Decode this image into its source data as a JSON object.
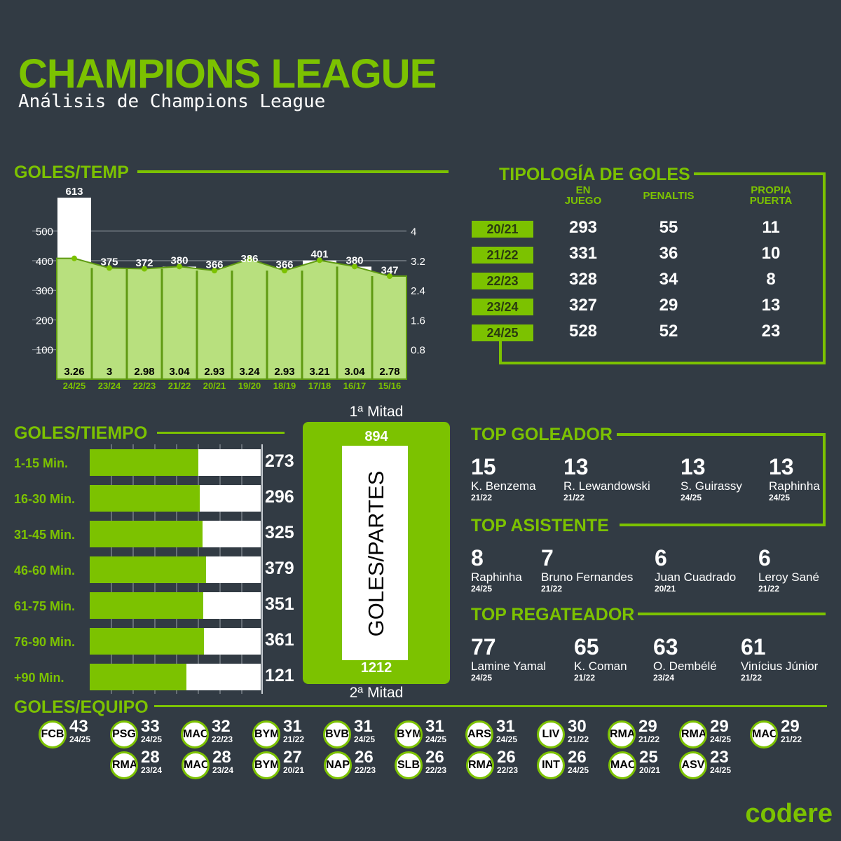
{
  "header": {
    "title": "CHAMPIONS LEAGUE",
    "subtitle": "Análisis de Champions League"
  },
  "sections": {
    "goles_temp": "GOLES/TEMP",
    "tipologia": "TIPOLOGÍA DE GOLES",
    "goles_tiempo": "GOLES/TIEMPO",
    "goles_partes": "GOLES/PARTES",
    "top_goleador": "TOP GOLEADOR",
    "top_asistente": "TOP ASISTENTE",
    "top_regateador": "TOP REGATEADOR",
    "goles_equipo": "GOLES/EQUIPO"
  },
  "chart_data": [
    {
      "type": "bar",
      "categories": [
        "24/25",
        "23/24",
        "22/23",
        "21/22",
        "20/21",
        "19/20",
        "18/19",
        "17/18",
        "16/17",
        "15/16"
      ],
      "series": [
        {
          "values": [
            613,
            375,
            372,
            380,
            366,
            386,
            366,
            401,
            380,
            347
          ]
        },
        {
          "values": [
            3.26,
            3,
            2.98,
            3.04,
            2.93,
            3.24,
            2.93,
            3.21,
            3.04,
            2.78
          ]
        }
      ],
      "ylim": [
        0,
        613
      ],
      "yticks": [
        100,
        200,
        300,
        400,
        500
      ],
      "y2lim": [
        0,
        4.9
      ],
      "y2ticks": [
        "0.8",
        "1.6",
        "2.4",
        "3.2",
        "4"
      ],
      "grid": true,
      "colors": {
        "bar": "#ffffff",
        "area": "#b8e07e",
        "accent": "#7cc200"
      }
    },
    {
      "type": "table",
      "columns": [
        "EN JUEGO",
        "PENALTIS",
        "PROPIA PUERTA"
      ],
      "rows": [
        {
          "season": "20/21",
          "values": [
            293,
            55,
            11
          ]
        },
        {
          "season": "21/22",
          "values": [
            331,
            36,
            10
          ]
        },
        {
          "season": "22/23",
          "values": [
            328,
            34,
            8
          ]
        },
        {
          "season": "23/24",
          "values": [
            327,
            29,
            13
          ]
        },
        {
          "season": "24/25",
          "values": [
            528,
            52,
            23
          ]
        }
      ]
    },
    {
      "type": "bar",
      "orientation": "horizontal",
      "categories": [
        "1-15 Min.",
        "16-30 Min.",
        "31-45 Min.",
        "46-60 Min.",
        "61-75 Min.",
        "76-90 Min.",
        "+90 Min."
      ],
      "values": [
        273,
        296,
        325,
        379,
        351,
        361,
        121
      ],
      "fill_fraction": [
        0.635,
        0.645,
        0.66,
        0.68,
        0.665,
        0.67,
        0.565
      ]
    },
    {
      "type": "bar",
      "categories": [
        "1ª Mitad",
        "2ª Mitad"
      ],
      "values": [
        894,
        1212
      ]
    }
  ],
  "top_goleador": [
    {
      "value": "15",
      "name": "K. Benzema",
      "season": "21/22"
    },
    {
      "value": "13",
      "name": "R. Lewandowski",
      "season": "21/22"
    },
    {
      "value": "13",
      "name": "S. Guirassy",
      "season": "24/25"
    },
    {
      "value": "13",
      "name": "Raphinha",
      "season": "24/25"
    }
  ],
  "top_asistente": [
    {
      "value": "8",
      "name": "Raphinha",
      "season": "24/25"
    },
    {
      "value": "7",
      "name": "Bruno Fernandes",
      "season": "21/22"
    },
    {
      "value": "6",
      "name": "Juan Cuadrado",
      "season": "20/21"
    },
    {
      "value": "6",
      "name": "Leroy Sané",
      "season": "21/22"
    }
  ],
  "top_regateador": [
    {
      "value": "77",
      "name": "Lamine Yamal",
      "season": "24/25"
    },
    {
      "value": "65",
      "name": "K. Coman",
      "season": "21/22"
    },
    {
      "value": "63",
      "name": "O. Dembélé",
      "season": "23/24"
    },
    {
      "value": "61",
      "name": "Vinícius Júnior",
      "season": "21/22"
    }
  ],
  "teams": [
    {
      "abbr": "FCB",
      "value": "43",
      "season": "24/25"
    },
    {
      "abbr": "PSG",
      "value": "33",
      "season": "24/25"
    },
    {
      "abbr": "MAC",
      "value": "32",
      "season": "22/23"
    },
    {
      "abbr": "BYM",
      "value": "31",
      "season": "21/22"
    },
    {
      "abbr": "BVB",
      "value": "31",
      "season": "24/25"
    },
    {
      "abbr": "BYM",
      "value": "31",
      "season": "24/25"
    },
    {
      "abbr": "ARS",
      "value": "31",
      "season": "24/25"
    },
    {
      "abbr": "LIV",
      "value": "30",
      "season": "21/22"
    },
    {
      "abbr": "RMA",
      "value": "29",
      "season": "21/22"
    },
    {
      "abbr": "RMA",
      "value": "29",
      "season": "24/25"
    },
    {
      "abbr": "MAC",
      "value": "29",
      "season": "21/22"
    },
    {
      "abbr": "RMA",
      "value": "28",
      "season": "23/24"
    },
    {
      "abbr": "MAC",
      "value": "28",
      "season": "23/24"
    },
    {
      "abbr": "BYM",
      "value": "27",
      "season": "20/21"
    },
    {
      "abbr": "NAP",
      "value": "26",
      "season": "22/23"
    },
    {
      "abbr": "SLB",
      "value": "26",
      "season": "22/23"
    },
    {
      "abbr": "RMA",
      "value": "26",
      "season": "22/23"
    },
    {
      "abbr": "INT",
      "value": "26",
      "season": "24/25"
    },
    {
      "abbr": "MAC",
      "value": "25",
      "season": "20/21"
    },
    {
      "abbr": "ASV",
      "value": "23",
      "season": "24/25"
    }
  ],
  "brand": "codere"
}
